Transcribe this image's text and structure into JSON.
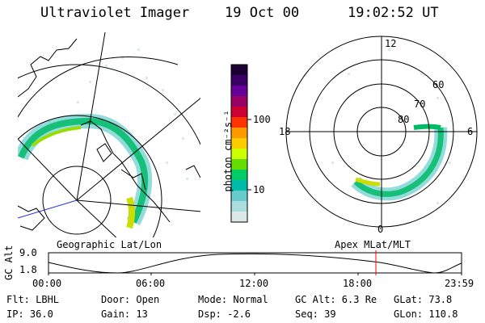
{
  "header": {
    "title": "Ultraviolet Imager",
    "date": "19 Oct 00",
    "time": "19:02:52 UT"
  },
  "left_panel": {
    "caption": "Geographic Lat/Lon"
  },
  "right_panel": {
    "caption": "Apex MLat/MLT",
    "mlt_labels": {
      "top": "12",
      "left": "18",
      "right": "6",
      "bottom": "0"
    },
    "lat_labels": [
      "60",
      "70",
      "80"
    ]
  },
  "colorbar": {
    "unit_label": "photon cm⁻²s⁻¹",
    "ticks": [
      "100",
      "10"
    ],
    "colors": [
      "#1a0033",
      "#3a0066",
      "#660099",
      "#990066",
      "#cc0033",
      "#ff3300",
      "#ff9900",
      "#ffcc00",
      "#ccff00",
      "#66dd00",
      "#00cc66",
      "#00bbaa",
      "#66cccc",
      "#aadddd",
      "#dde8e8"
    ]
  },
  "altitude_plot": {
    "y_axis_label": "GC Alt",
    "y_ticks": [
      "9.0",
      "1.8"
    ],
    "x_ticks": [
      "00:00",
      "06:00",
      "12:00",
      "18:00",
      "23:59"
    ],
    "marker_color": "#ff0000"
  },
  "status": {
    "row1": {
      "filter": "Flt: LBHL",
      "door": "Door: Open",
      "mode": "Mode: Normal",
      "gc_alt": "GC Alt: 6.3 Re",
      "glat": "GLat: 73.8"
    },
    "row2": {
      "ip": "IP: 36.0",
      "gain": "Gain: 13",
      "dsp": "Dsp:   -2.6",
      "seq": "Seq: 39",
      "glon": "GLon: 110.8"
    }
  }
}
